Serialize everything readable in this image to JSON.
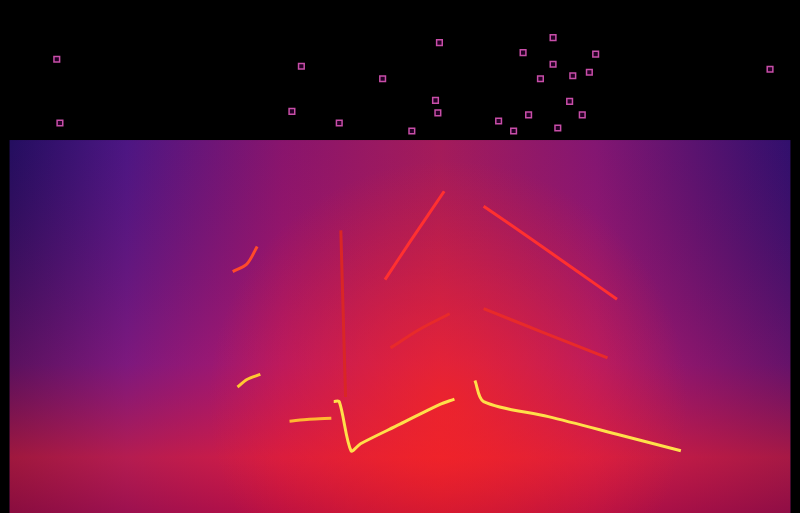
{
  "chart_data": {
    "type": "line",
    "xlim": [
      0,
      100
    ],
    "ylim": [
      0,
      100
    ],
    "grid": false,
    "tick_labels": false,
    "series": [
      {
        "color": "#ffe04a",
        "marker": "none",
        "line_style": "solid",
        "x": [
          41.6,
          42.3,
          43.8,
          45,
          50,
          55,
          56.9,
          58,
          59.5,
          60.6,
          68.8,
          77.5,
          85.6
        ],
        "values": [
          21.1,
          21.1,
          11.3,
          12.7,
          16.6,
          20.5,
          21.6,
          null,
          25.3,
          21.1,
          18.1,
          14.6,
          11.3
        ]
      },
      {
        "color": "#ffc832",
        "marker": "none",
        "line_style": "solid",
        "x": [
          29.4,
          30.6,
          32.3
        ],
        "values": [
          24.0,
          25.5,
          26.5
        ]
      },
      {
        "color": "#ffb830",
        "marker": "none",
        "line_style": "solid",
        "x": [
          36,
          38.5,
          41.3
        ],
        "values": [
          17.2,
          17.6,
          17.8
        ]
      },
      {
        "color": "#ff3030",
        "marker": "none",
        "line_style": "solid",
        "x": [
          48.1,
          51.3,
          55.6
        ],
        "values": [
          45.4,
          53.0,
          63.0
        ]
      },
      {
        "color": "#ff3030",
        "marker": "none",
        "line_style": "solid",
        "x": [
          60.6,
          66.9,
          72.5,
          77.5
        ],
        "values": [
          60.0,
          53.2,
          47.0,
          41.5
        ]
      },
      {
        "color": "#e82a2a",
        "marker": "none",
        "line_style": "solid",
        "x": [
          60.6,
          68.1,
          76.3
        ],
        "values": [
          39.6,
          34.9,
          29.8
        ]
      },
      {
        "color": "#e82a2a",
        "marker": "none",
        "line_style": "solid",
        "x": [
          48.8,
          52.5,
          56.3
        ],
        "values": [
          31.8,
          35.5,
          38.6
        ]
      },
      {
        "color": "#d92626",
        "marker": "none",
        "line_style": "solid",
        "x": [
          42.5,
          43.1
        ],
        "values": [
          55.2,
          22.0
        ]
      },
      {
        "color": "#ff4a2a",
        "marker": "none",
        "line_style": "solid",
        "x": [
          28.8,
          30.6,
          31.9
        ],
        "values": [
          47.0,
          48.5,
          52.0
        ]
      },
      {
        "color": "#c84ea8",
        "marker": "rect",
        "line_style": "none",
        "x": [
          6.5,
          6.9,
          37.5,
          36.3,
          42.3,
          47.8,
          51.5,
          55,
          54.5,
          54.8,
          62.5,
          64.4,
          65.6,
          66.3,
          67.8,
          69.4,
          69.4,
          70,
          71.5,
          71.9,
          73.1,
          74,
          74.8,
          96.9
        ],
        "values": [
          89.3,
          76.6,
          87.9,
          78.9,
          76.6,
          85.4,
          75.0,
          92.6,
          81.1,
          78.6,
          77.0,
          75.0,
          90.6,
          78.2,
          85.4,
          93.6,
          88.3,
          75.6,
          80.9,
          86.0,
          78.2,
          86.7,
          90.3,
          87.3
        ]
      }
    ]
  }
}
